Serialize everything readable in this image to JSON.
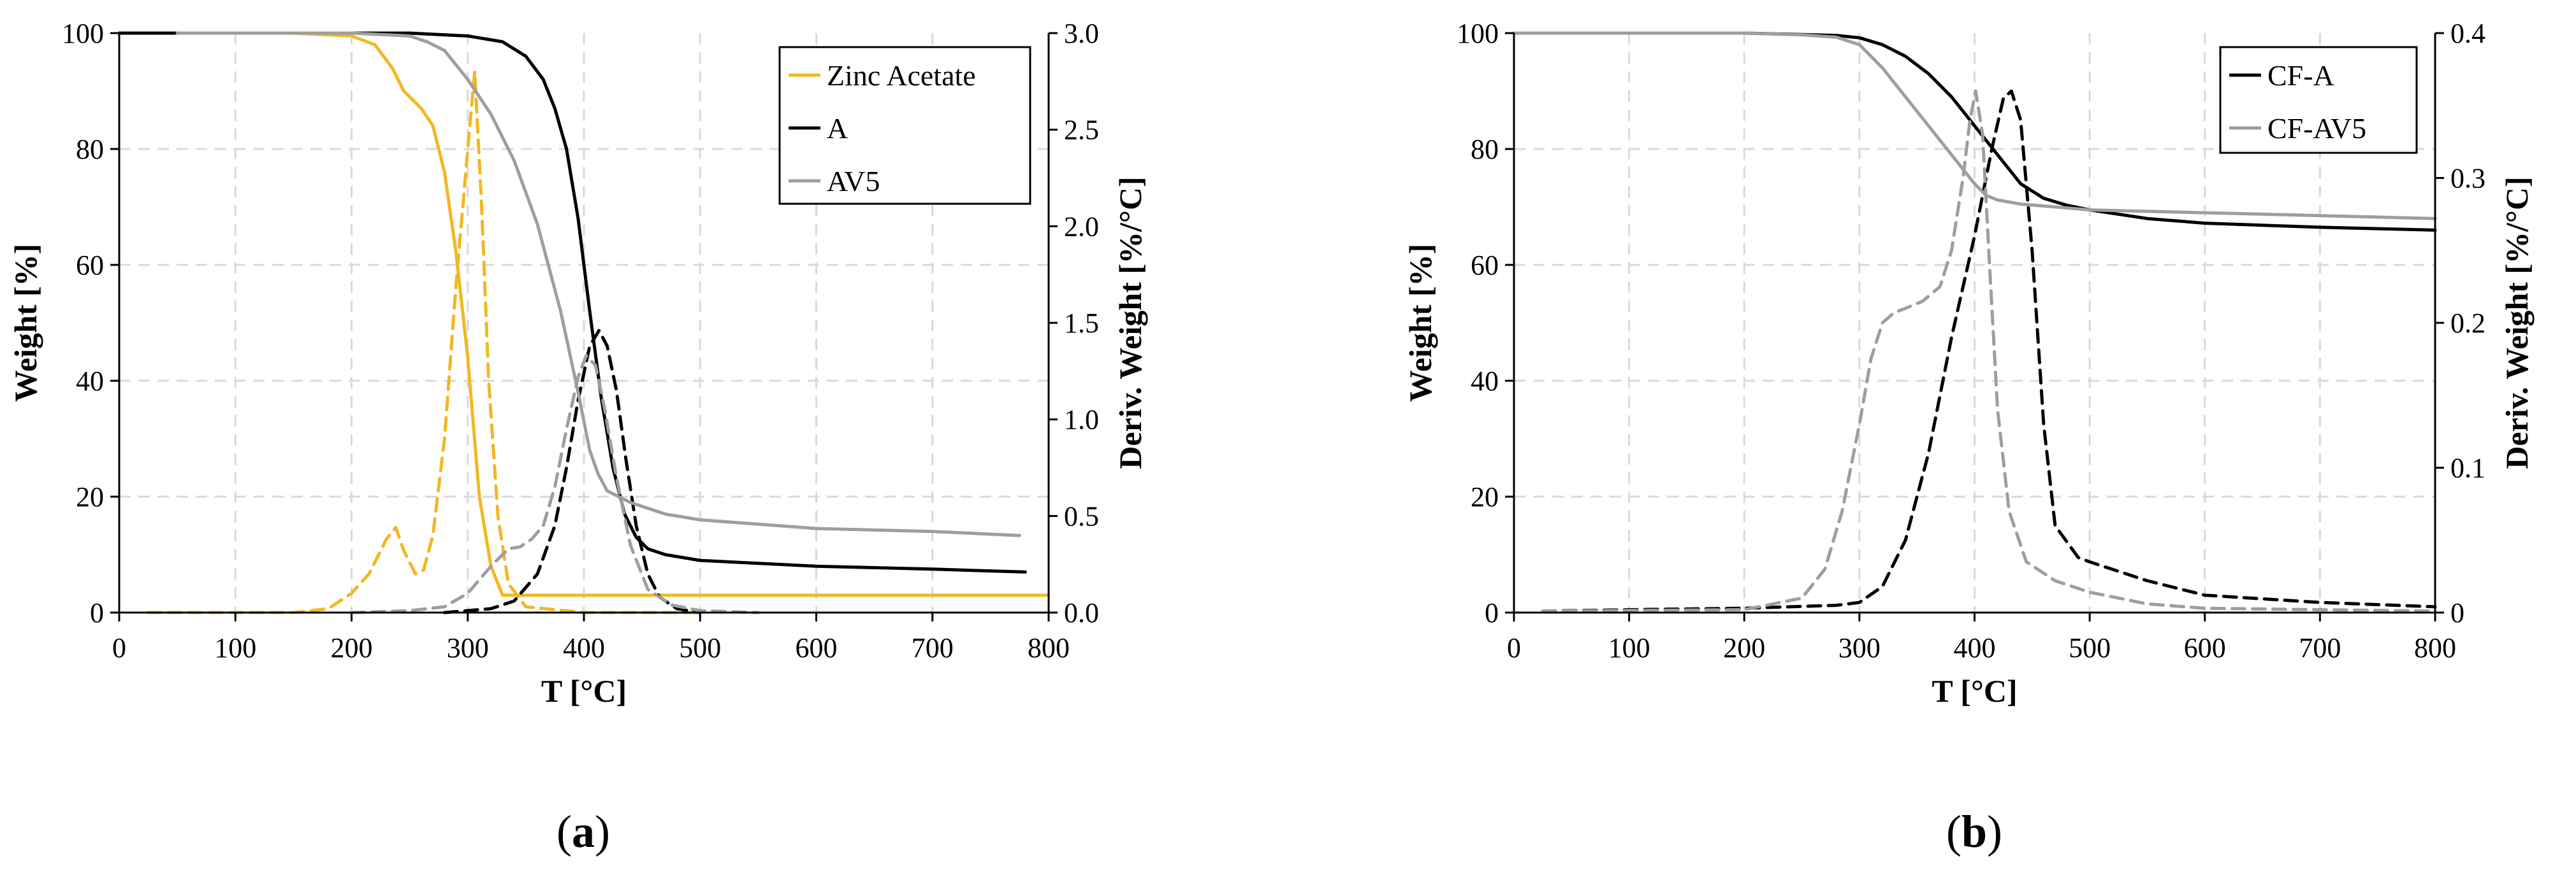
{
  "chart_data": [
    {
      "type": "line",
      "panel_label": "a",
      "xlabel": "T [°C]",
      "ylabel": "Weight [%]",
      "y2label": "Deriv. Weight [%/°C]",
      "xlim": [
        0,
        800
      ],
      "ylim": [
        0,
        100
      ],
      "y2lim": [
        0,
        3.0
      ],
      "xticks": [
        "0",
        "100",
        "200",
        "300",
        "400",
        "500",
        "600",
        "700",
        "800"
      ],
      "yticks": [
        "0",
        "20",
        "40",
        "60",
        "80",
        "100"
      ],
      "y2ticks": [
        "0.0",
        "0.5",
        "1.0",
        "1.5",
        "2.0",
        "2.5",
        "3.0"
      ],
      "grid": true,
      "legend_position": "top-right",
      "legend": [
        {
          "name": "Zinc Acetate",
          "color": "#f2b823"
        },
        {
          "name": "A",
          "color": "#000000"
        },
        {
          "name": "AV5",
          "color": "#9e9e9e"
        }
      ],
      "series": [
        {
          "name": "Zinc Acetate",
          "axis": "left",
          "style": "solid",
          "color": "#f2b823",
          "x": [
            50,
            150,
            200,
            220,
            235,
            245,
            260,
            270,
            280,
            290,
            300,
            310,
            320,
            330,
            340,
            400,
            500,
            600,
            700,
            800
          ],
          "y": [
            100,
            100,
            99.5,
            98,
            94,
            90,
            87,
            84,
            76,
            62,
            44,
            20,
            8,
            3,
            3,
            3,
            3,
            3,
            3,
            3
          ]
        },
        {
          "name": "Zinc Acetate (deriv.)",
          "axis": "right",
          "style": "dashed",
          "color": "#f2b823",
          "x": [
            25,
            150,
            180,
            200,
            215,
            230,
            238,
            245,
            255,
            262,
            270,
            280,
            290,
            300,
            306,
            312,
            318,
            326,
            335,
            350,
            400,
            500
          ],
          "y": [
            0,
            0,
            0.02,
            0.1,
            0.2,
            0.38,
            0.44,
            0.32,
            0.2,
            0.22,
            0.4,
            0.9,
            1.7,
            2.4,
            2.8,
            2.1,
            1.2,
            0.5,
            0.15,
            0.03,
            0,
            0
          ]
        },
        {
          "name": "A",
          "axis": "left",
          "style": "solid",
          "color": "#000000",
          "x": [
            0,
            250,
            300,
            330,
            350,
            365,
            375,
            385,
            395,
            405,
            415,
            425,
            435,
            445,
            455,
            470,
            500,
            600,
            700,
            780
          ],
          "y": [
            100,
            100,
            99.5,
            98.5,
            96,
            92,
            87,
            80,
            68,
            52,
            37,
            25,
            17,
            13,
            11,
            10,
            9,
            8,
            7.5,
            7
          ]
        },
        {
          "name": "A (deriv.)",
          "axis": "right",
          "style": "dashed",
          "color": "#000000",
          "x": [
            280,
            320,
            340,
            360,
            375,
            385,
            395,
            405,
            413,
            420,
            428,
            436,
            445,
            455,
            465,
            480,
            500
          ],
          "y": [
            0,
            0.02,
            0.06,
            0.2,
            0.45,
            0.75,
            1.1,
            1.38,
            1.46,
            1.38,
            1.15,
            0.8,
            0.45,
            0.2,
            0.08,
            0.02,
            0
          ]
        },
        {
          "name": "AV5",
          "axis": "left",
          "style": "solid",
          "color": "#9e9e9e",
          "x": [
            50,
            200,
            250,
            265,
            280,
            300,
            320,
            340,
            360,
            380,
            395,
            405,
            412,
            420,
            440,
            470,
            500,
            600,
            700,
            775
          ],
          "y": [
            100,
            100,
            99.5,
            98.5,
            97,
            92,
            86,
            78,
            67,
            52,
            38,
            28,
            24,
            21,
            19,
            17,
            16,
            14.5,
            14,
            13.3
          ]
        },
        {
          "name": "AV5 (deriv.)",
          "axis": "right",
          "style": "dashed",
          "color": "#9e9e9e",
          "x": [
            200,
            250,
            280,
            300,
            320,
            335,
            345,
            355,
            365,
            375,
            385,
            395,
            402,
            410,
            418,
            428,
            440,
            455,
            475,
            500,
            550
          ],
          "y": [
            0,
            0.01,
            0.03,
            0.1,
            0.24,
            0.33,
            0.34,
            0.38,
            0.45,
            0.65,
            0.95,
            1.22,
            1.33,
            1.28,
            1.05,
            0.7,
            0.35,
            0.12,
            0.04,
            0.01,
            0
          ]
        }
      ]
    },
    {
      "type": "line",
      "panel_label": "b",
      "xlabel": "T [°C]",
      "ylabel": "Weight [%]",
      "y2label": "Deriv. Weight [%/°C]",
      "xlim": [
        0,
        800
      ],
      "ylim": [
        0,
        100
      ],
      "y2lim": [
        0,
        0.4
      ],
      "xticks": [
        "0",
        "100",
        "200",
        "300",
        "400",
        "500",
        "600",
        "700",
        "800"
      ],
      "yticks": [
        "0",
        "20",
        "40",
        "60",
        "80",
        "100"
      ],
      "y2ticks": [
        "0",
        "0.1",
        "0.2",
        "0.3",
        "0.4"
      ],
      "grid": true,
      "legend_position": "top-right",
      "legend": [
        {
          "name": "CF-A",
          "color": "#000000"
        },
        {
          "name": "CF-AV5",
          "color": "#9e9e9e"
        }
      ],
      "series": [
        {
          "name": "CF-A",
          "axis": "left",
          "style": "solid",
          "color": "#000000",
          "x": [
            0,
            200,
            280,
            300,
            320,
            340,
            360,
            380,
            400,
            420,
            440,
            460,
            480,
            500,
            550,
            600,
            700,
            800
          ],
          "y": [
            100,
            100,
            99.6,
            99.2,
            98,
            96,
            93,
            89,
            84,
            79,
            74,
            71.5,
            70.3,
            69.5,
            68,
            67.2,
            66.5,
            66
          ]
        },
        {
          "name": "CF-A (deriv.)",
          "axis": "right",
          "style": "dashed",
          "color": "#000000",
          "x": [
            25,
            100,
            200,
            280,
            300,
            320,
            340,
            360,
            380,
            400,
            415,
            425,
            432,
            440,
            450,
            460,
            470,
            490,
            500,
            550,
            600,
            700,
            800
          ],
          "y": [
            0.001,
            0.002,
            0.003,
            0.005,
            0.007,
            0.018,
            0.05,
            0.11,
            0.19,
            0.26,
            0.32,
            0.355,
            0.36,
            0.34,
            0.25,
            0.13,
            0.06,
            0.038,
            0.035,
            0.022,
            0.012,
            0.007,
            0.004
          ]
        },
        {
          "name": "CF-AV5",
          "axis": "left",
          "style": "solid",
          "color": "#9e9e9e",
          "x": [
            0,
            200,
            250,
            280,
            300,
            320,
            340,
            360,
            380,
            400,
            410,
            420,
            440,
            470,
            500,
            600,
            700,
            800
          ],
          "y": [
            100,
            100,
            99.7,
            99.3,
            98,
            94,
            89,
            84,
            79,
            74,
            72,
            71.2,
            70.5,
            70,
            69.5,
            69,
            68.5,
            68
          ]
        },
        {
          "name": "CF-AV5 (deriv.)",
          "axis": "right",
          "style": "dashed",
          "color": "#9e9e9e",
          "x": [
            25,
            200,
            250,
            270,
            285,
            300,
            310,
            320,
            330,
            340,
            355,
            370,
            380,
            390,
            396,
            401,
            407,
            413,
            420,
            430,
            445,
            470,
            500,
            550,
            600,
            700,
            800
          ],
          "y": [
            0.001,
            0.002,
            0.01,
            0.03,
            0.07,
            0.13,
            0.175,
            0.2,
            0.207,
            0.21,
            0.215,
            0.225,
            0.25,
            0.3,
            0.34,
            0.36,
            0.33,
            0.24,
            0.14,
            0.07,
            0.035,
            0.022,
            0.014,
            0.006,
            0.003,
            0.002,
            0.001
          ]
        }
      ]
    }
  ]
}
